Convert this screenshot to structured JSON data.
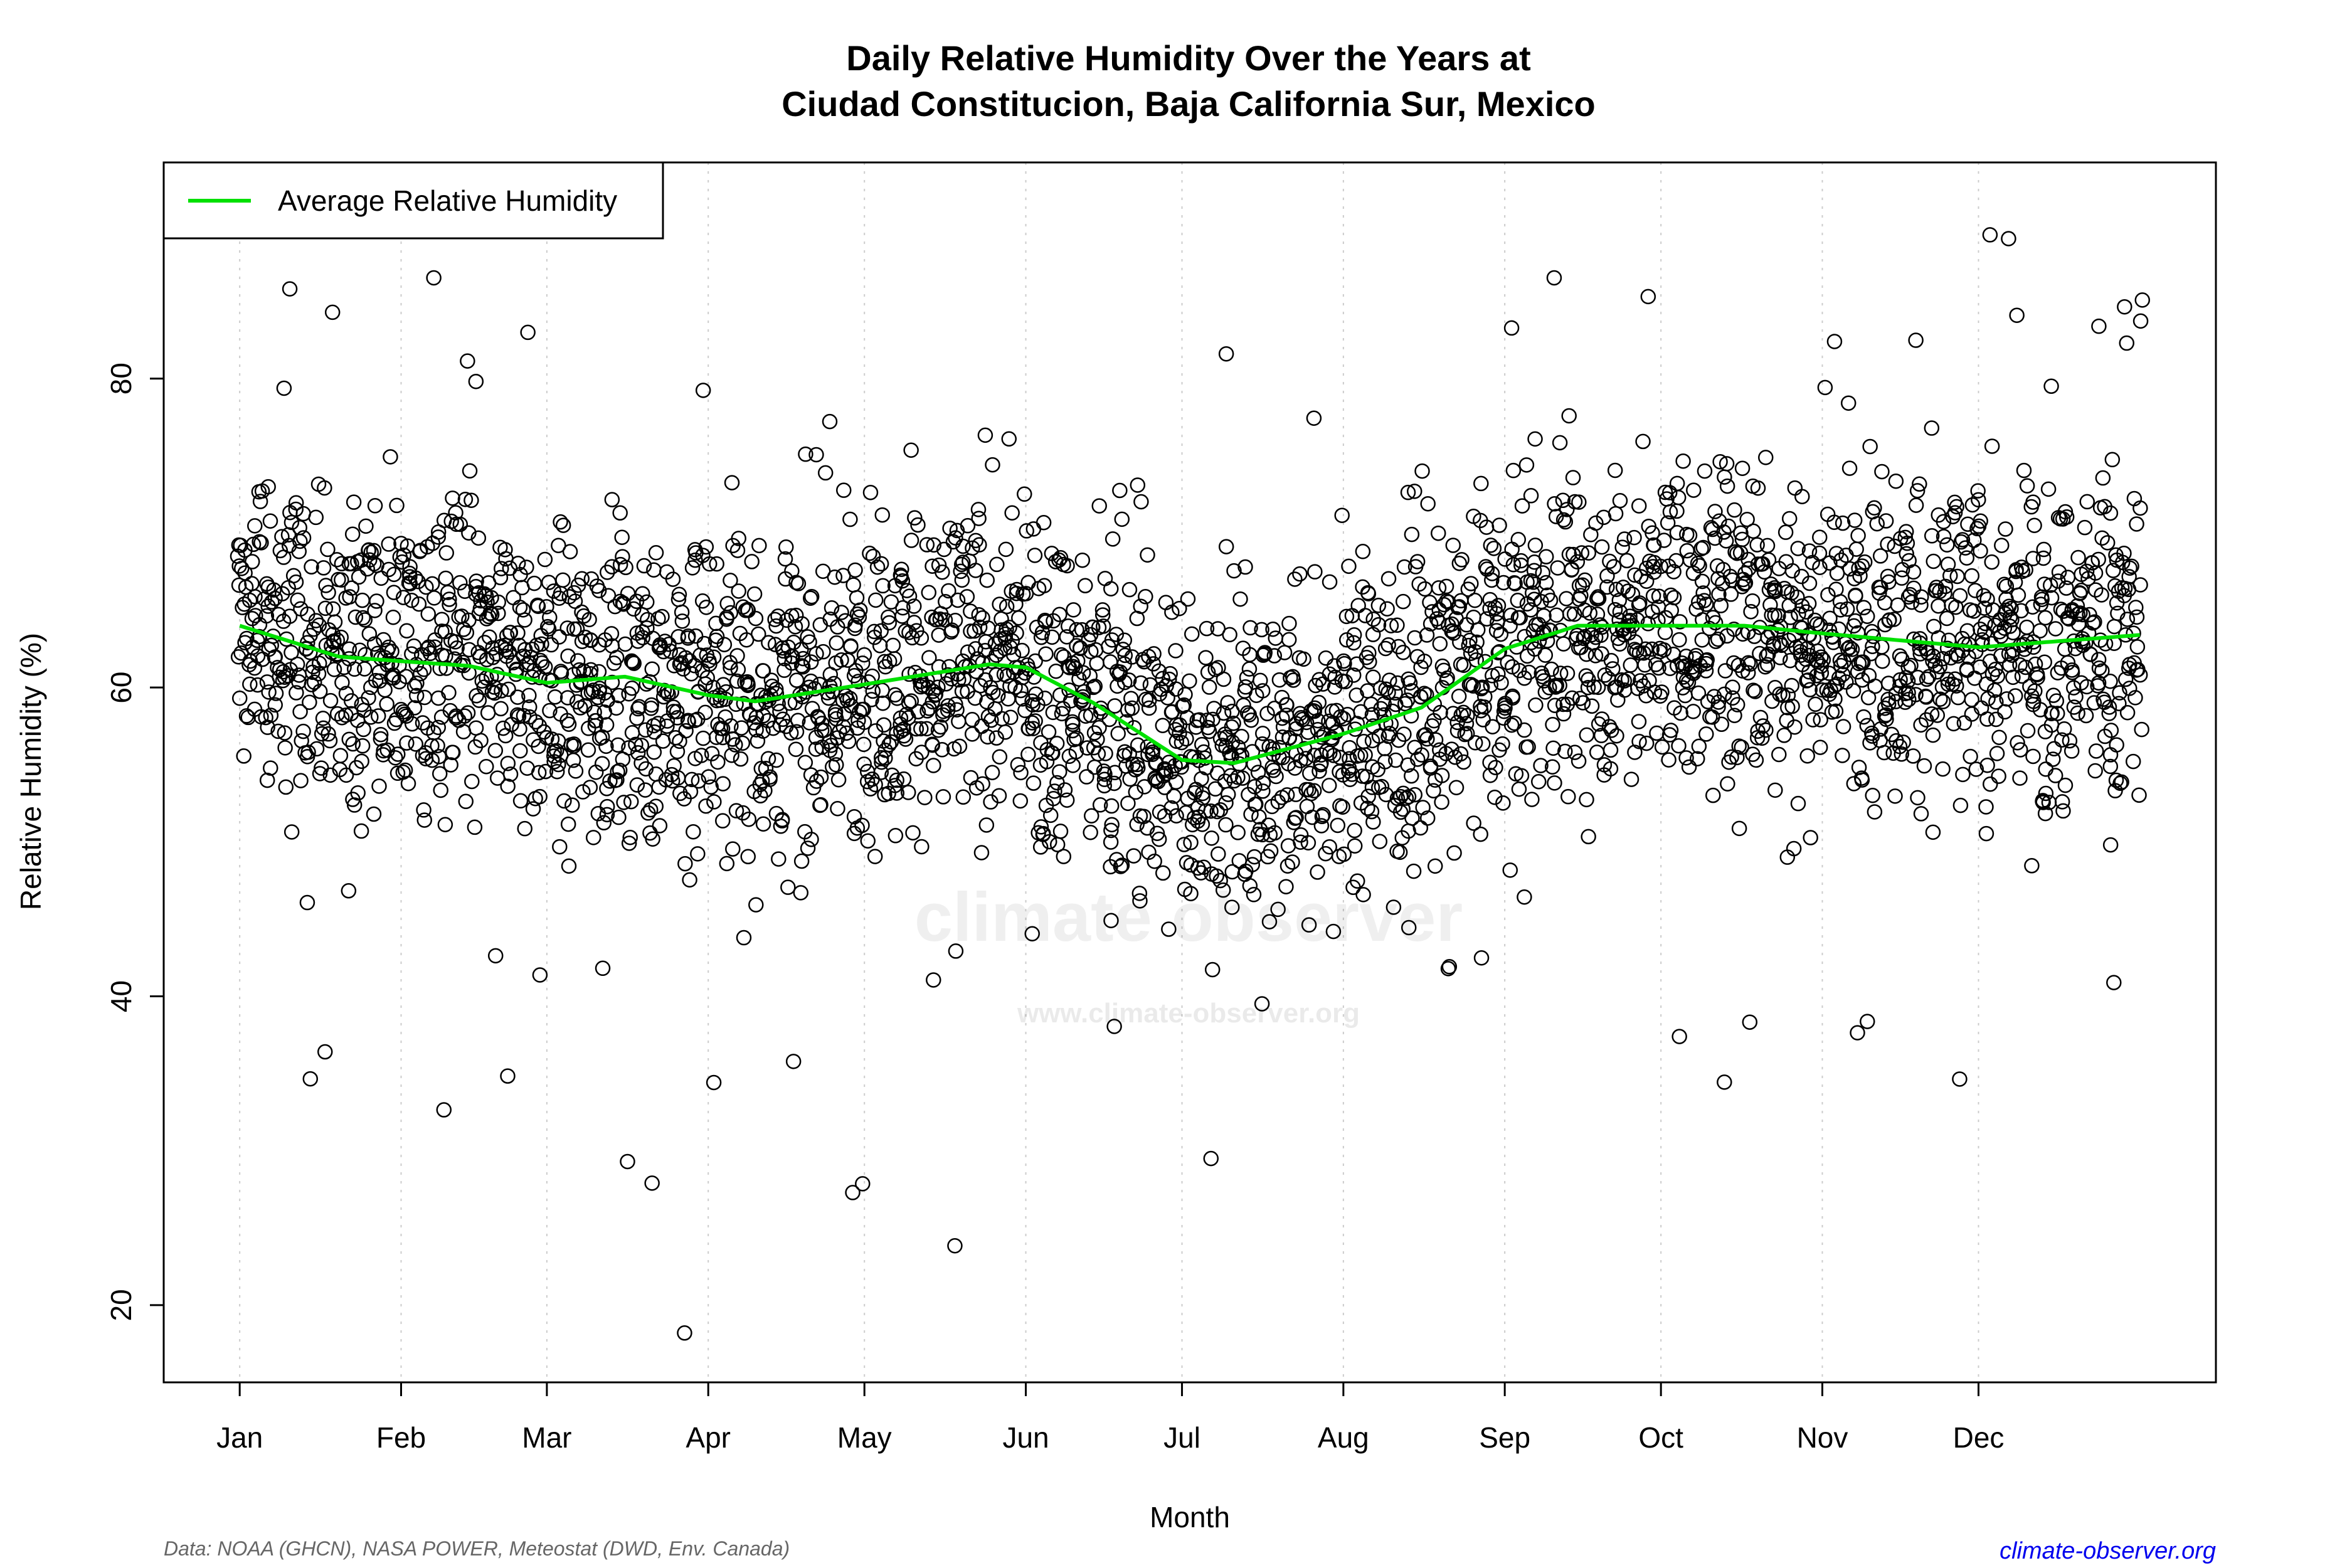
{
  "chart_data": {
    "type": "scatter",
    "title_lines": [
      "Daily Relative Humidity Over the Years at",
      "Ciudad Constitucion, Baja California Sur, Mexico"
    ],
    "xlabel": "Month",
    "ylabel": "Relative Humidity  (%)",
    "x_ticks": [
      "Jan",
      "Feb",
      "Mar",
      "Apr",
      "May",
      "Jun",
      "Jul",
      "Aug",
      "Sep",
      "Oct",
      "Nov",
      "Dec"
    ],
    "x_tick_days": [
      1,
      32,
      60,
      91,
      121,
      152,
      182,
      213,
      244,
      274,
      305,
      335
    ],
    "y_ticks": [
      20,
      40,
      60,
      80
    ],
    "xlim_day_of_year": [
      1,
      366
    ],
    "ylim": [
      15,
      94
    ],
    "grid": "vertical dotted at month starts",
    "legend": {
      "position": "top-left",
      "entries": [
        {
          "label": "Average Relative Humidity",
          "color": "#00e000"
        }
      ]
    },
    "average_line": {
      "name": "Average Relative Humidity",
      "color": "#00e000",
      "day_of_year": [
        1,
        20,
        32,
        45,
        60,
        75,
        91,
        100,
        121,
        145,
        152,
        165,
        182,
        192,
        213,
        228,
        244,
        258,
        274,
        290,
        305,
        335,
        366
      ],
      "values": [
        64,
        62,
        61.7,
        61.4,
        60.3,
        60.7,
        59.5,
        59.1,
        60.2,
        61.5,
        61.3,
        59,
        55.3,
        55.1,
        57,
        58.7,
        62.5,
        64,
        64,
        64,
        63.5,
        62.6,
        63.4
      ]
    },
    "daily_points": {
      "marker": "open circle",
      "color": "#000000",
      "monthly_observed_range": [
        [
          34,
          88
        ],
        [
          29,
          88
        ],
        [
          18,
          83
        ],
        [
          21,
          79
        ],
        [
          21,
          77
        ],
        [
          31,
          77
        ],
        [
          28,
          82
        ],
        [
          40,
          84
        ],
        [
          45,
          91
        ],
        [
          33,
          91
        ],
        [
          32,
          84
        ],
        [
          32,
          90
        ]
      ]
    }
  },
  "watermark": {
    "brand": "climate observer",
    "url": "www.climate-observer.org"
  },
  "footer": {
    "source": "Data: NOAA (GHCN), NASA POWER, Meteostat (DWD, Env. Canada)",
    "site": "climate-observer.org"
  }
}
